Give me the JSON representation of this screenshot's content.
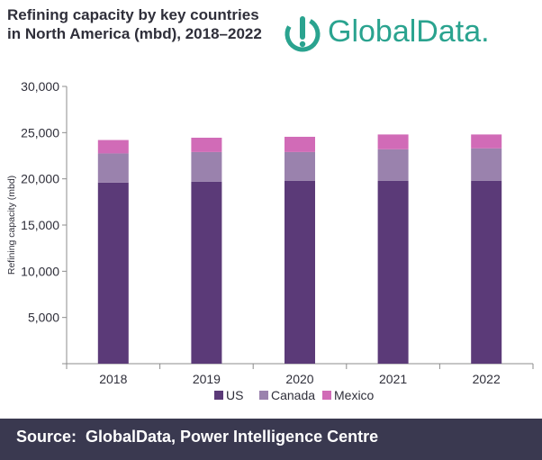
{
  "title": "Refining capacity by key countries in North America (mbd), 2018–2022",
  "logo": {
    "text": "GlobalData.",
    "icon": "globaldata-g-icon",
    "color": "#2aa38f"
  },
  "source": "Source:  GlobalData, Power Intelligence Centre",
  "colors": {
    "footer_bg": "#3a3950",
    "text": "#2f2f3a"
  },
  "chart_data": {
    "type": "bar",
    "stacked": true,
    "categories": [
      "2018",
      "2019",
      "2020",
      "2021",
      "2022"
    ],
    "series": [
      {
        "name": "US",
        "color": "#5b3a78",
        "values": [
          19600,
          19700,
          19800,
          19800,
          19800
        ]
      },
      {
        "name": "Canada",
        "color": "#9a82ad",
        "values": [
          3150,
          3200,
          3100,
          3400,
          3500
        ]
      },
      {
        "name": "Mexico",
        "color": "#d16bb7",
        "values": [
          1450,
          1550,
          1650,
          1600,
          1500
        ]
      }
    ],
    "title": "",
    "xlabel": "",
    "ylabel": "Refining capacity (mbd)",
    "ylim": [
      0,
      30000
    ],
    "yticks": [
      0,
      5000,
      10000,
      15000,
      20000,
      25000,
      30000
    ],
    "ytick_labels": [
      "",
      "5,000",
      "10,000",
      "15,000",
      "20,000",
      "25,000",
      "30,000"
    ],
    "grid": false,
    "legend_position": "bottom"
  }
}
